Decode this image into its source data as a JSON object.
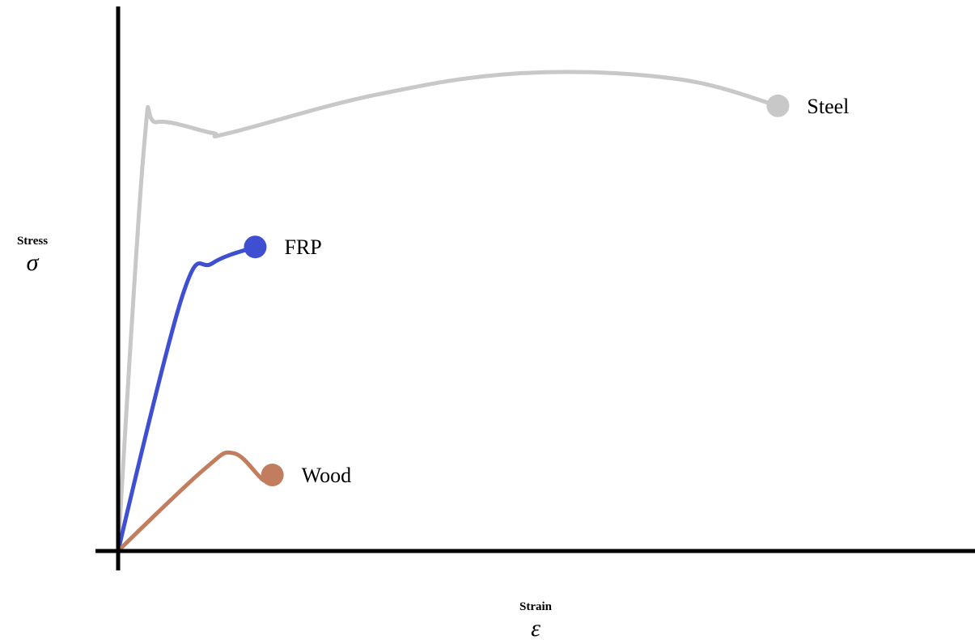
{
  "chart_data": {
    "type": "line",
    "title": "",
    "ylabel": "Stress",
    "ylabel_symbol": "σ",
    "xlabel": "Strain",
    "xlabel_symbol": "ε",
    "grid": false,
    "legend": "inline-labels",
    "xlim": [
      0,
      1
    ],
    "ylim": [
      0,
      1
    ],
    "series": [
      {
        "name": "Steel",
        "color": "#c8c8c8",
        "endpoint_marker": true,
        "points": [
          [
            0,
            0
          ],
          [
            0.03,
            0.74
          ],
          [
            0.045,
            0.79
          ],
          [
            0.11,
            0.77
          ],
          [
            0.13,
            0.77
          ],
          [
            0.3,
            0.84
          ],
          [
            0.47,
            0.88
          ],
          [
            0.65,
            0.87
          ],
          [
            0.77,
            0.82
          ]
        ]
      },
      {
        "name": "FRP",
        "color": "#3f4fd1",
        "endpoint_marker": true,
        "points": [
          [
            0,
            0
          ],
          [
            0.075,
            0.47
          ],
          [
            0.11,
            0.53
          ],
          [
            0.16,
            0.56
          ]
        ]
      },
      {
        "name": "Wood",
        "color": "#c17d5d",
        "endpoint_marker": true,
        "points": [
          [
            0,
            0
          ],
          [
            0.1,
            0.15
          ],
          [
            0.135,
            0.18
          ],
          [
            0.17,
            0.13
          ],
          [
            0.18,
            0.14
          ]
        ]
      }
    ]
  }
}
